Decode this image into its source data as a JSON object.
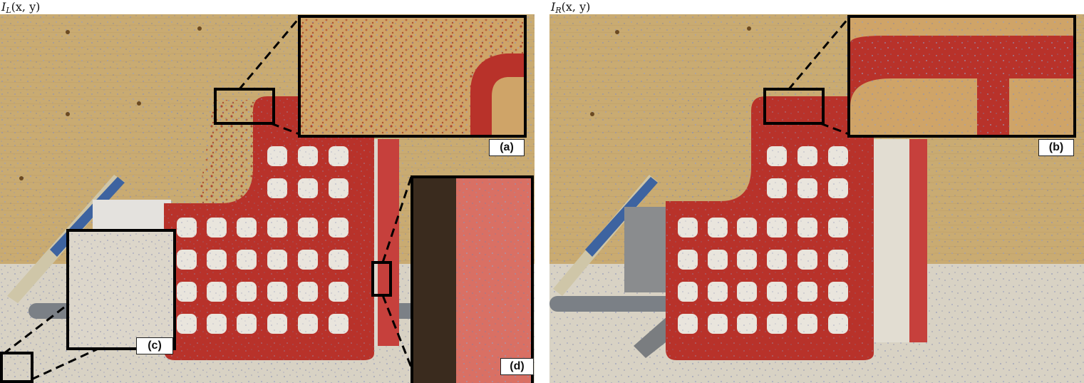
{
  "panels": [
    {
      "title_main": "I",
      "title_sub": "L",
      "title_args": "(x, y)"
    },
    {
      "title_main": "I",
      "title_sub": "R",
      "title_args": "(x, y)"
    }
  ],
  "zoom_labels": {
    "a": "(a)",
    "b": "(b)",
    "c": "(c)",
    "d": "(d)"
  },
  "colors": {
    "wall": "#c9ab72",
    "floor": "#d8d2c4",
    "basket_red": "#b8322a",
    "dot_noise": "#8f95b8"
  }
}
